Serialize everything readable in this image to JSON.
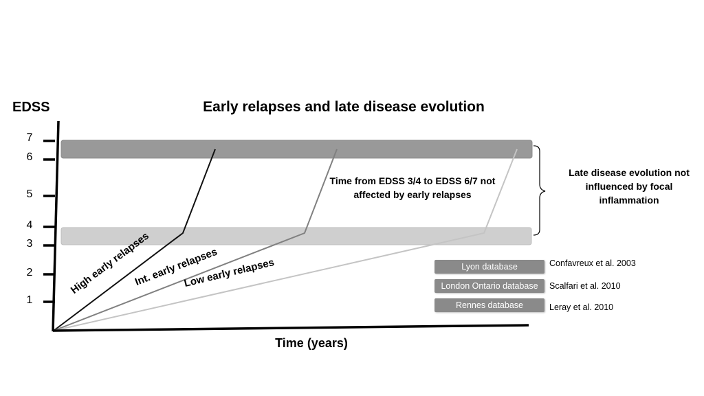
{
  "title": "Early relapses and late disease evolution",
  "y_axis": {
    "label": "EDSS",
    "ticks": [
      "1",
      "2",
      "3",
      "4",
      "5",
      "6",
      "7"
    ]
  },
  "x_axis": {
    "label": "Time (years)"
  },
  "bands": [
    {
      "name": "EDSS 6-7 band",
      "from": 6,
      "to": 7,
      "color": "#999999"
    },
    {
      "name": "EDSS 3-4 band",
      "from": 3,
      "to": 4,
      "color": "#cfcfcf"
    }
  ],
  "curves": [
    {
      "label": "High early relapses",
      "color": "#111111"
    },
    {
      "label": "Int. early relapses",
      "color": "#808080"
    },
    {
      "label": "Low early relapses",
      "color": "#c4c4c4"
    }
  ],
  "annotations": {
    "middle": "Time from EDSS 3/4 to EDSS 6/7 not affected by early relapses",
    "right": "Late disease evolution not influenced by focal inflammation"
  },
  "databases": [
    {
      "name": "Lyon database",
      "reference": "Confavreux et al. 2003"
    },
    {
      "name": "London Ontario database",
      "reference": "Scalfari et al. 2010"
    },
    {
      "name": "Rennes database",
      "reference": "Leray et al. 2010"
    }
  ],
  "colors": {
    "axis": "#000000",
    "db_box": "#8a8a8a",
    "band_high": "#999999",
    "band_low": "#cfcfcf"
  }
}
